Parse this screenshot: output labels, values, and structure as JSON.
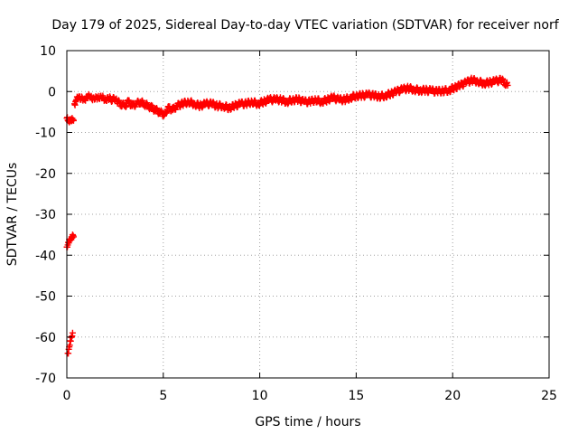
{
  "chart_data": {
    "type": "scatter",
    "title": "Day 179 of 2025, Sidereal Day-to-day VTEC variation (SDTVAR) for receiver norf",
    "xlabel": "GPS time / hours",
    "ylabel": "SDTVAR / TECUs",
    "xlim": [
      0,
      25
    ],
    "ylim": [
      -70,
      10
    ],
    "x_ticks": [
      0,
      5,
      10,
      15,
      20,
      25
    ],
    "y_ticks": [
      10,
      0,
      -10,
      -20,
      -30,
      -40,
      -50,
      -60,
      -70
    ],
    "grid": true,
    "legend": "none",
    "marker": "+",
    "series_color": "#ff0000",
    "series": [
      {
        "name": "SDTVAR",
        "x": [
          0.05,
          0.1,
          0.15,
          0.2,
          0.25,
          0.3,
          0.0,
          0.05,
          0.1,
          0.15,
          0.2,
          0.25,
          0.3,
          0.35,
          0.0,
          0.05,
          0.1,
          0.15,
          0.2,
          0.25,
          0.3,
          0.35,
          0.4,
          0.45,
          0.5,
          0.6,
          0.7,
          0.8,
          0.9,
          1.0,
          1.1,
          1.2,
          1.3,
          1.4,
          1.5,
          1.6,
          1.7,
          1.8,
          1.9,
          2.0,
          2.1,
          2.2,
          2.5,
          2.6,
          2.8,
          3.0,
          3.2,
          3.4,
          3.6,
          3.8,
          4.0,
          4.2,
          4.4,
          4.6,
          4.8,
          5.0,
          5.1,
          5.3,
          5.5,
          5.7,
          6.0,
          6.3,
          6.6,
          6.9,
          7.2,
          7.5,
          7.8,
          8.1,
          8.4,
          8.7,
          9.0,
          9.3,
          9.6,
          9.9,
          10.2,
          10.5,
          10.8,
          11.1,
          11.4,
          11.7,
          12.0,
          12.3,
          12.6,
          12.9,
          13.2,
          13.5,
          13.8,
          14.1,
          14.4,
          14.7,
          15.0,
          15.3,
          15.6,
          15.9,
          16.2,
          16.5,
          16.8,
          17.1,
          17.4,
          17.7,
          18.0,
          18.3,
          18.6,
          18.9,
          19.2,
          19.5,
          19.8,
          20.1,
          20.4,
          20.7,
          21.0,
          21.3,
          21.6,
          21.9,
          22.2,
          22.5,
          22.7,
          22.85
        ],
        "y": [
          -64,
          -63,
          -62,
          -61,
          -60,
          -59,
          -38,
          -37.5,
          -37,
          -36.5,
          -36,
          -35.5,
          -35,
          -35.5,
          -6.5,
          -7,
          -7,
          -6.8,
          -7,
          -7.2,
          -7,
          -7.1,
          -3,
          -2.5,
          -2,
          -1.5,
          -2,
          -1.5,
          -1.8,
          -1.5,
          -1.2,
          -1.5,
          -1.8,
          -1.5,
          -1.2,
          -1.5,
          -1.8,
          -1.5,
          -1.5,
          -2,
          -1.5,
          -1.8,
          -2,
          -2.5,
          -3,
          -3.5,
          -2.5,
          -3.5,
          -3,
          -2.5,
          -3,
          -3.5,
          -4,
          -4.5,
          -5,
          -5.5,
          -5,
          -4,
          -4.5,
          -3.5,
          -3,
          -2.5,
          -3,
          -3.5,
          -3,
          -3,
          -3.5,
          -3.5,
          -4,
          -3.5,
          -3,
          -3,
          -2.5,
          -3,
          -2.5,
          -2,
          -2,
          -2,
          -2.5,
          -2,
          -2,
          -2.5,
          -2.5,
          -2,
          -2.5,
          -2,
          -1.5,
          -2,
          -2,
          -1.5,
          -1,
          -1,
          -0.8,
          -1,
          -1.2,
          -1,
          -0.5,
          0,
          0.5,
          0.8,
          0.5,
          0.3,
          0.3,
          0.2,
          0,
          0.2,
          0.3,
          1,
          1.5,
          2.2,
          2.8,
          2.5,
          2,
          2.2,
          2.5,
          2.8,
          2.2,
          1.5
        ]
      }
    ]
  }
}
